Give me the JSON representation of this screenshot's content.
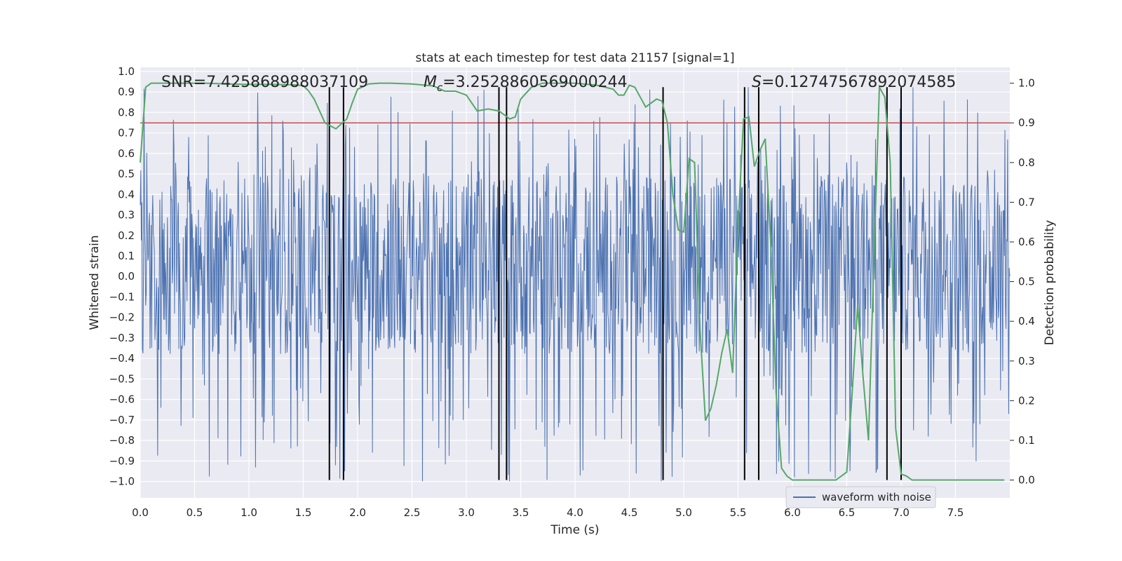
{
  "chart_data": {
    "type": "line",
    "title": "stats at each timestep for test data 21157 [signal=1]",
    "xlabel": "Time (s)",
    "ylabel_left": "Whitened strain",
    "ylabel_right": "Detection probability",
    "xlim": [
      0,
      8
    ],
    "ylim_left": [
      -1.08,
      1.02
    ],
    "ylim_right": [
      -0.045,
      1.04
    ],
    "x_ticks": [
      0.0,
      0.5,
      1.0,
      1.5,
      2.0,
      2.5,
      3.0,
      3.5,
      4.0,
      4.5,
      5.0,
      5.5,
      6.0,
      6.5,
      7.0,
      7.5
    ],
    "x_tick_labels": [
      "0.0",
      "0.5",
      "1.0",
      "1.5",
      "2.0",
      "2.5",
      "3.0",
      "3.5",
      "4.0",
      "4.5",
      "5.0",
      "5.5",
      "6.0",
      "6.5",
      "7.0",
      "7.5"
    ],
    "y_left_ticks": [
      1.0,
      0.9,
      0.8,
      0.7,
      0.6,
      0.5,
      0.4,
      0.3,
      0.2,
      0.1,
      0.0,
      -0.1,
      -0.2,
      -0.3,
      -0.4,
      -0.5,
      -0.6,
      -0.7,
      -0.8,
      -0.9,
      -1.0
    ],
    "y_left_tick_labels": [
      "1.0",
      "0.9",
      "0.8",
      "0.7",
      "0.6",
      "0.5",
      "0.4",
      "0.3",
      "0.2",
      "0.1",
      "0.0",
      "−0.1",
      "−0.2",
      "−0.3",
      "−0.4",
      "−0.5",
      "−0.6",
      "−0.7",
      "−0.8",
      "−0.9",
      "−1.0"
    ],
    "y_right_ticks": [
      1.0,
      0.9,
      0.8,
      0.7,
      0.6,
      0.5,
      0.4,
      0.3,
      0.2,
      0.1,
      0.0
    ],
    "y_right_tick_labels": [
      "1.0",
      "0.9",
      "0.8",
      "0.7",
      "0.6",
      "0.5",
      "0.4",
      "0.3",
      "0.2",
      "0.1",
      "0.0"
    ],
    "grid": true,
    "legend": {
      "position": "lower-right",
      "entries": [
        "waveform with noise"
      ]
    },
    "annotations": {
      "snr": "SNR=7.425868988037109",
      "mc_symbol": "M",
      "mc_subscript": "c",
      "mc_value": "=3.2528860569000244",
      "s_symbol": "S",
      "s_value": "=0.12747567892074585"
    },
    "threshold": {
      "axis": "right",
      "value": 0.9,
      "color": "#c44e52"
    },
    "event_lines_x": [
      1.74,
      1.87,
      3.3,
      3.37,
      4.81,
      5.56,
      5.69,
      6.87,
      7.0
    ],
    "series": [
      {
        "name": "waveform with noise",
        "axis": "left",
        "color": "#4c72b0",
        "description": "dense noisy strain; core band about -0.4 to 0.55 with spikes",
        "sample_count": 1600,
        "typical_range": [
          -0.45,
          0.55
        ],
        "peak_range": [
          -1.0,
          0.93
        ]
      },
      {
        "name": "Detection probability",
        "axis": "right",
        "color": "#55a868",
        "x": [
          0.0,
          0.05,
          0.1,
          0.2,
          0.4,
          0.6,
          0.8,
          1.0,
          1.2,
          1.4,
          1.5,
          1.55,
          1.6,
          1.7,
          1.8,
          1.9,
          1.95,
          2.0,
          2.1,
          2.2,
          2.3,
          2.5,
          2.7,
          2.8,
          2.9,
          3.0,
          3.1,
          3.2,
          3.3,
          3.4,
          3.45,
          3.5,
          3.6,
          3.7,
          3.8,
          4.0,
          4.2,
          4.35,
          4.4,
          4.45,
          4.5,
          4.55,
          4.6,
          4.65,
          4.7,
          4.75,
          4.8,
          4.85,
          4.9,
          4.95,
          5.0,
          5.05,
          5.1,
          5.15,
          5.2,
          5.25,
          5.3,
          5.35,
          5.4,
          5.45,
          5.5,
          5.55,
          5.6,
          5.65,
          5.7,
          5.75,
          5.8,
          5.85,
          5.9,
          5.95,
          6.0,
          6.05,
          6.1,
          6.2,
          6.3,
          6.4,
          6.5,
          6.55,
          6.6,
          6.65,
          6.7,
          6.75,
          6.8,
          6.85,
          6.9,
          6.95,
          7.0,
          7.05,
          7.1,
          7.2,
          7.3,
          7.5,
          7.7,
          7.95
        ],
        "values": [
          0.8,
          0.99,
          1.0,
          1.0,
          1.0,
          1.0,
          0.998,
          0.997,
          0.997,
          0.996,
          0.994,
          0.98,
          0.96,
          0.9,
          0.885,
          0.91,
          0.95,
          0.985,
          0.998,
          1.0,
          1.0,
          0.998,
          0.993,
          0.98,
          0.98,
          0.97,
          0.93,
          0.935,
          0.93,
          0.91,
          0.915,
          0.96,
          0.99,
          1.0,
          1.0,
          1.0,
          0.995,
          0.985,
          0.97,
          0.97,
          0.995,
          0.99,
          0.965,
          0.94,
          0.95,
          0.96,
          0.955,
          0.9,
          0.72,
          0.63,
          0.625,
          0.81,
          0.8,
          0.38,
          0.15,
          0.18,
          0.24,
          0.32,
          0.38,
          0.27,
          0.64,
          0.91,
          0.915,
          0.79,
          0.83,
          0.86,
          0.6,
          0.22,
          0.03,
          0.01,
          0.0,
          0.0,
          0.0,
          0.0,
          0.0,
          0.0,
          0.02,
          0.22,
          0.44,
          0.26,
          0.1,
          0.56,
          0.99,
          0.965,
          0.8,
          0.13,
          0.015,
          0.01,
          0.0,
          0.0,
          0.0,
          0.0,
          0.0,
          0.0
        ]
      }
    ]
  }
}
